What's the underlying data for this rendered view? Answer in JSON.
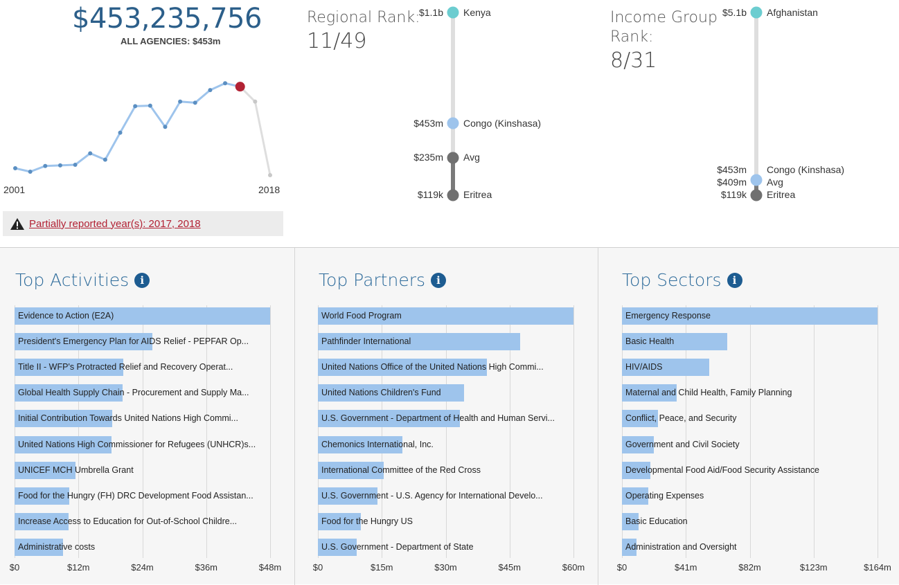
{
  "summary": {
    "total": "$453,235,756",
    "all_agencies": "ALL AGENCIES: $453m",
    "year_start": "2001",
    "year_end": "2018",
    "warning": "Partially reported year(s): 2017, 2018",
    "spark_values": [
      0.06,
      0.03,
      0.08,
      0.085,
      0.09,
      0.19,
      0.135,
      0.37,
      0.6,
      0.605,
      0.42,
      0.64,
      0.63,
      0.74,
      0.8,
      0.77,
      0.64,
      0.0
    ]
  },
  "regional_rank": {
    "label": "Regional Rank:",
    "value": "11/49",
    "top": {
      "value": "$1.1b",
      "name": "Kenya"
    },
    "current": {
      "value": "$453m",
      "name": "Congo (Kinshasa)"
    },
    "avg": {
      "value": "$235m",
      "name": "Avg"
    },
    "bottom": {
      "value": "$119k",
      "name": "Eritrea"
    }
  },
  "income_rank": {
    "label_line1": "Income Group",
    "label_line2": "Rank:",
    "value": "8/31",
    "top": {
      "value": "$5.1b",
      "name": "Afghanistan"
    },
    "current": {
      "value": "$453m",
      "name": "Congo (Kinshasa)"
    },
    "avg": {
      "value": "$409m",
      "name": "Avg"
    },
    "bottom": {
      "value": "$119k",
      "name": "Eritrea"
    }
  },
  "colors": {
    "accent": "#2c6a9a",
    "bar": "#9ec4ec",
    "highlight": "#b22234",
    "teal": "#6ccdd0",
    "gray_dot": "#707070"
  },
  "top_activities": {
    "title": "Top Activities",
    "max": 48,
    "ticks": [
      "$0",
      "$12m",
      "$24m",
      "$36m",
      "$48m"
    ],
    "items": [
      {
        "label": "Evidence to Action (E2A)",
        "value": 48
      },
      {
        "label": "President's Emergency Plan for AIDS Relief - PEPFAR Op...",
        "value": 25.9
      },
      {
        "label": "Title II - WFP's Protracted Relief and Recovery Operat...",
        "value": 20.4
      },
      {
        "label": "Global Health Supply Chain - Procurement and Supply Ma...",
        "value": 20.3
      },
      {
        "label": "Initial Contribution Towards United Nations High Commi...",
        "value": 18.3
      },
      {
        "label": "United Nations High Commissioner for Refugees (UNHCR)s...",
        "value": 18.2
      },
      {
        "label": "UNICEF MCH Umbrella Grant",
        "value": 11.5
      },
      {
        "label": "Food for the Hungry (FH) DRC Development Food Assistan...",
        "value": 10.3
      },
      {
        "label": "Increase Access to Education for Out-of-School Childre...",
        "value": 10.1
      },
      {
        "label": "Administrative costs",
        "value": 9.1
      }
    ]
  },
  "top_partners": {
    "title": "Top Partners",
    "max": 60,
    "ticks": [
      "$0",
      "$15m",
      "$30m",
      "$45m",
      "$60m"
    ],
    "items": [
      {
        "label": "World Food Program",
        "value": 60
      },
      {
        "label": "Pathfinder International",
        "value": 47.4
      },
      {
        "label": "United Nations Office of the United Nations High Commi...",
        "value": 39.7
      },
      {
        "label": "United Nations Children's Fund",
        "value": 34.3
      },
      {
        "label": "U.S. Government - Department of Health and Human Servi...",
        "value": 33.3
      },
      {
        "label": "Chemonics International, Inc.",
        "value": 19.9
      },
      {
        "label": "International Committee of the Red Cross",
        "value": 15.5
      },
      {
        "label": "U.S. Government - U.S. Agency for International Develo...",
        "value": 14.0
      },
      {
        "label": "Food for the Hungry US",
        "value": 10.1
      },
      {
        "label": "U.S. Government - Department of State",
        "value": 9.1
      }
    ]
  },
  "top_sectors": {
    "title": "Top Sectors",
    "max": 164,
    "ticks": [
      "$0",
      "$41m",
      "$82m",
      "$123m",
      "$164m"
    ],
    "items": [
      {
        "label": "Emergency Response",
        "value": 164
      },
      {
        "label": "Basic Health",
        "value": 67.5
      },
      {
        "label": "HIV/AIDS",
        "value": 56.2
      },
      {
        "label": "Maternal and Child Health, Family Planning",
        "value": 35.1
      },
      {
        "label": "Conflict, Peace, and Security",
        "value": 23.1
      },
      {
        "label": "Government and Civil Society",
        "value": 20.4
      },
      {
        "label": "Developmental Food Aid/Food Security Assistance",
        "value": 18.2
      },
      {
        "label": "Operating Expenses",
        "value": 16.9
      },
      {
        "label": "Basic Education",
        "value": 10.7
      },
      {
        "label": "Administration and Oversight",
        "value": 9.3
      }
    ]
  }
}
